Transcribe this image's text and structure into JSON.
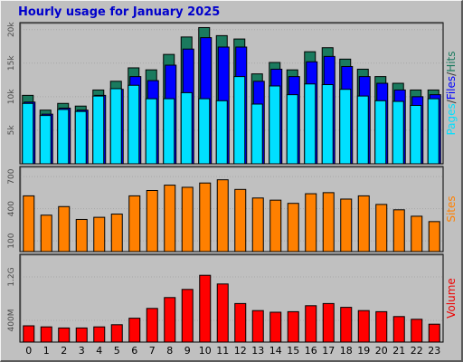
{
  "chart_data": {
    "type": "bar",
    "title": "Hourly usage for January 2025",
    "categories": [
      "0",
      "1",
      "2",
      "3",
      "4",
      "5",
      "6",
      "7",
      "8",
      "9",
      "10",
      "11",
      "12",
      "13",
      "14",
      "15",
      "16",
      "17",
      "18",
      "19",
      "20",
      "21",
      "22",
      "23"
    ],
    "panels": [
      {
        "id": "hits",
        "ylim": [
          0,
          20500
        ],
        "y_ticks": [
          "5k",
          "10k",
          "15k",
          "20k"
        ],
        "y_tick_values": [
          5000,
          10000,
          15000,
          20000
        ],
        "right_label_parts": [
          {
            "text": "Pages",
            "color": "#00e0ff"
          },
          {
            "text": "/",
            "color": "#333333"
          },
          {
            "text": "Files",
            "color": "#0000ff"
          },
          {
            "text": "/",
            "color": "#333333"
          },
          {
            "text": "Hits",
            "color": "#1a7a5e"
          }
        ],
        "series": [
          {
            "name": "Hits",
            "color": "#1a7a5e",
            "values": [
              10200,
              8000,
              9000,
              8600,
              11000,
              12300,
              14300,
              14000,
              16300,
              18900,
              20300,
              19100,
              18600,
              13400,
              15100,
              14000,
              16700,
              17300,
              15600,
              14100,
              13000,
              12000,
              11000,
              11000
            ]
          },
          {
            "name": "Files",
            "color": "#0000ff",
            "values": [
              9200,
              7400,
              8300,
              8000,
              10200,
              11100,
              13000,
              12400,
              14700,
              17100,
              18800,
              17400,
              17400,
              12300,
              14100,
              13000,
              15200,
              16000,
              14500,
              13000,
              12000,
              11000,
              10000,
              10300
            ]
          },
          {
            "name": "Pages",
            "color": "#00e0ff",
            "values": [
              9000,
              7200,
              8100,
              7800,
              10100,
              11200,
              11700,
              9700,
              9700,
              10600,
              9700,
              9400,
              13000,
              8900,
              11600,
              10300,
              11900,
              11800,
              11100,
              10100,
              9400,
              9300,
              8700,
              9700
            ]
          }
        ]
      },
      {
        "id": "sites",
        "ylim": [
          0,
          760
        ],
        "y_ticks": [
          "100",
          "400",
          "700"
        ],
        "y_tick_values": [
          100,
          400,
          700
        ],
        "right_label_parts": [
          {
            "text": "Sites",
            "color": "#ff8000"
          }
        ],
        "series": [
          {
            "name": "Sites",
            "color": "#ff8000",
            "values": [
              520,
              340,
              420,
              300,
              320,
              350,
              520,
              570,
              620,
              600,
              640,
              670,
              580,
              500,
              480,
              450,
              540,
              550,
              490,
              520,
              440,
              390,
              330,
              280
            ]
          }
        ]
      },
      {
        "id": "volume",
        "ylim": [
          0,
          1550
        ],
        "y_ticks": [
          "400M",
          "1.2G"
        ],
        "y_tick_values": [
          400,
          1200
        ],
        "right_label_parts": [
          {
            "text": "Volume",
            "color": "#ee0000"
          }
        ],
        "series": [
          {
            "name": "Volume",
            "color": "#ff0000",
            "values": [
              300,
              280,
              260,
              260,
              280,
              320,
              440,
              620,
              820,
              970,
              1230,
              1070,
              710,
              580,
              550,
              560,
              670,
              710,
              640,
              580,
              560,
              470,
              420,
              330
            ]
          }
        ]
      }
    ]
  }
}
